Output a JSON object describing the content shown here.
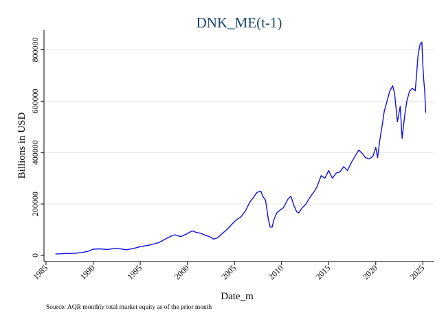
{
  "chart_data": {
    "type": "line",
    "title": "DNK_ME(t-1)",
    "xlabel": "Date_m",
    "ylabel": "Billions in USD",
    "note": "Source: AQR monthly total market equity as of the prior month",
    "xlim": [
      1985,
      2026
    ],
    "ylim": [
      0,
      860000
    ],
    "x_ticks": [
      1985,
      1990,
      1995,
      2000,
      2005,
      2010,
      2015,
      2020,
      2025
    ],
    "y_ticks": [
      0,
      200000,
      400000,
      600000,
      800000
    ],
    "grid": true,
    "line_color": "#1010dd",
    "series": [
      {
        "x": [
          1986.0,
          1987.0,
          1988.0,
          1988.8,
          1989.5,
          1990.0,
          1990.7,
          1991.5,
          1992.3,
          1992.9,
          1993.5,
          1994.2,
          1995.0,
          1996.0,
          1997.0,
          1997.6,
          1998.3,
          1998.7,
          1999.3,
          2000.0,
          2000.5,
          2000.9,
          2001.5,
          2001.9,
          2002.4,
          2002.8,
          2003.2,
          2003.7,
          2004.2,
          2004.7,
          2005.2,
          2005.7,
          2006.2,
          2006.6,
          2007.0,
          2007.4,
          2007.8,
          2008.0,
          2008.3,
          2008.6,
          2008.8,
          2009.0,
          2009.2,
          2009.5,
          2009.8,
          2010.2,
          2010.7,
          2011.0,
          2011.3,
          2011.6,
          2011.8,
          2012.2,
          2012.6,
          2013.0,
          2013.5,
          2013.8,
          2014.2,
          2014.6,
          2015.0,
          2015.4,
          2015.8,
          2016.2,
          2016.6,
          2017.0,
          2017.4,
          2017.8,
          2018.2,
          2018.6,
          2018.9,
          2019.3,
          2019.7,
          2020.0,
          2020.2,
          2020.4,
          2020.7,
          2020.9,
          2021.2,
          2021.5,
          2021.8,
          2022.0,
          2022.3,
          2022.6,
          2022.8,
          2023.1,
          2023.3,
          2023.6,
          2023.9,
          2024.2,
          2024.5,
          2024.7,
          2024.9,
          2025.0,
          2025.1,
          2025.2,
          2025.3
        ],
        "y": [
          5000,
          7000,
          8000,
          11000,
          16000,
          24000,
          25000,
          23000,
          27000,
          25000,
          22000,
          26000,
          34000,
          40000,
          50000,
          62000,
          75000,
          80000,
          73000,
          85000,
          95000,
          90000,
          85000,
          78000,
          72000,
          63000,
          68000,
          85000,
          100000,
          120000,
          138000,
          150000,
          175000,
          205000,
          225000,
          245000,
          250000,
          230000,
          215000,
          140000,
          110000,
          110000,
          140000,
          165000,
          175000,
          185000,
          220000,
          230000,
          195000,
          170000,
          165000,
          185000,
          200000,
          225000,
          250000,
          270000,
          310000,
          300000,
          330000,
          300000,
          320000,
          325000,
          345000,
          330000,
          360000,
          385000,
          410000,
          395000,
          380000,
          375000,
          385000,
          420000,
          380000,
          440000,
          510000,
          560000,
          600000,
          640000,
          660000,
          630000,
          520000,
          580000,
          455000,
          550000,
          600000,
          640000,
          650000,
          640000,
          780000,
          820000,
          830000,
          740000,
          680000,
          640000,
          555000
        ]
      }
    ]
  }
}
